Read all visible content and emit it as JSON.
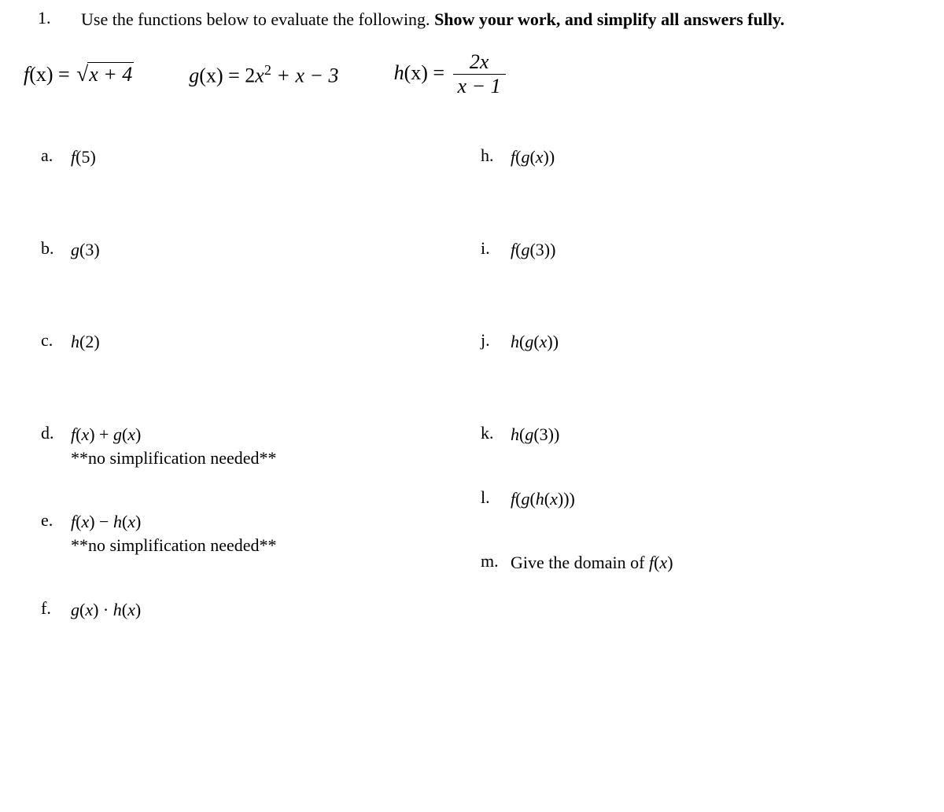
{
  "question": {
    "number": "1.",
    "stem_prefix": "Use the functions below to evaluate the following. ",
    "stem_bold": "Show your work, and simplify all answers fully."
  },
  "functions": {
    "f_lhs": "f",
    "f_arg": "(x) = ",
    "f_radicand": "x + 4",
    "g_lhs": "g",
    "g_rhs_pre": "(x) = 2",
    "g_rhs_var": "x",
    "g_rhs_post": " + x − 3",
    "h_lhs": "h",
    "h_arg": "(x) = ",
    "h_num": "2x",
    "h_den": "x − 1"
  },
  "left_parts": [
    {
      "label": "a.",
      "expr": "f(5)",
      "note": "",
      "tight": false
    },
    {
      "label": "b.",
      "expr": "g(3)",
      "note": "",
      "tight": false
    },
    {
      "label": "c.",
      "expr": "h(2)",
      "note": "",
      "tight": false
    },
    {
      "label": "d.",
      "expr": "f(x) + g(x)",
      "note": "**no simplification needed**",
      "tight": true
    },
    {
      "label": "e.",
      "expr": "f(x) − h(x)",
      "note": "**no simplification needed**",
      "tight": true
    },
    {
      "label": "f.",
      "expr": "g(x) · h(x)",
      "note": "",
      "tight": false
    }
  ],
  "right_parts": [
    {
      "label": "h.",
      "expr": "f(g(x))",
      "note": "",
      "tight": false
    },
    {
      "label": "i.",
      "expr": "f(g(3))",
      "note": "",
      "tight": false
    },
    {
      "label": "j.",
      "expr": "h(g(x))",
      "note": "",
      "tight": false
    },
    {
      "label": "k.",
      "expr": "h(g(3))",
      "note": "",
      "tight": true
    },
    {
      "label": "l.",
      "expr": "f(g(h(x)))",
      "note": "",
      "tight": true
    },
    {
      "label": "m.",
      "expr_plain": "Give the domain of f(x)",
      "note": "",
      "tight": false
    }
  ]
}
